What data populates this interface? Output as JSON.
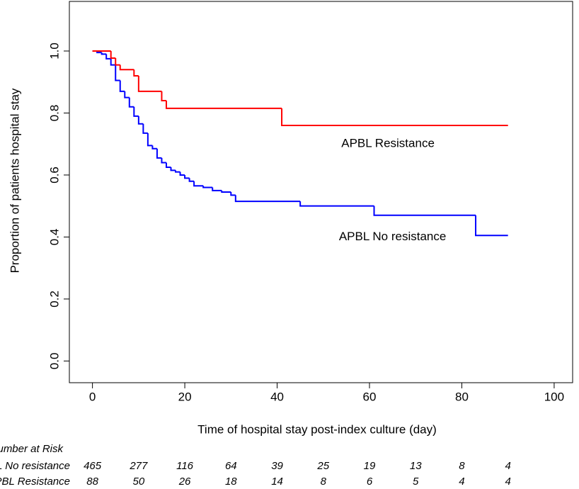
{
  "chart_data": {
    "type": "step",
    "xlabel": "Time of hospital stay post-index culture (day)",
    "ylabel": "Proportion of patients hospital stay",
    "xlim": [
      -5,
      104
    ],
    "ylim": [
      -0.07,
      1.16
    ],
    "xticks": [
      0,
      20,
      40,
      60,
      80,
      100
    ],
    "yticks": [
      {
        "value": 0,
        "label": "0.0"
      },
      {
        "value": 0.2,
        "label": "0.2"
      },
      {
        "value": 0.4,
        "label": "0.4"
      },
      {
        "value": 0.6,
        "label": "0.6"
      },
      {
        "value": 0.8,
        "label": "0.8"
      },
      {
        "value": 1,
        "label": "1.0"
      }
    ],
    "series": [
      {
        "name": "APBL No resistance",
        "color": "#0000ff",
        "x": [
          0,
          1,
          2,
          3,
          4,
          5,
          6,
          7,
          8,
          9,
          10,
          11,
          12,
          13,
          14,
          15,
          16,
          17,
          18,
          19,
          20,
          21,
          22,
          24,
          26,
          28,
          30,
          31,
          45,
          61,
          83,
          90
        ],
        "values": [
          1.0,
          0.995,
          0.99,
          0.975,
          0.955,
          0.905,
          0.87,
          0.85,
          0.82,
          0.79,
          0.765,
          0.735,
          0.695,
          0.685,
          0.655,
          0.64,
          0.625,
          0.615,
          0.61,
          0.6,
          0.59,
          0.58,
          0.565,
          0.56,
          0.55,
          0.545,
          0.535,
          0.515,
          0.5,
          0.47,
          0.405,
          0.405
        ],
        "label_pos": [
          65,
          0.4
        ]
      },
      {
        "name": "APBL Resistance",
        "color": "#ff0000",
        "x": [
          0,
          4,
          5,
          6,
          9,
          10,
          15,
          16,
          41,
          90
        ],
        "values": [
          1.0,
          0.977,
          0.955,
          0.94,
          0.92,
          0.87,
          0.84,
          0.815,
          0.76,
          0.76
        ],
        "label_pos": [
          64,
          0.7
        ]
      }
    ],
    "risk_table": {
      "title": "Number at Risk",
      "times": [
        0,
        10,
        20,
        30,
        40,
        50,
        60,
        70,
        80,
        90
      ],
      "rows": [
        {
          "name": "APBL No resistance",
          "color": "#0000ff",
          "values": [
            465,
            277,
            116,
            64,
            39,
            25,
            19,
            13,
            8,
            4
          ]
        },
        {
          "name": "APBL Resistance",
          "color": "#ff0000",
          "values": [
            88,
            50,
            26,
            18,
            14,
            8,
            6,
            5,
            4,
            4
          ]
        }
      ]
    }
  }
}
